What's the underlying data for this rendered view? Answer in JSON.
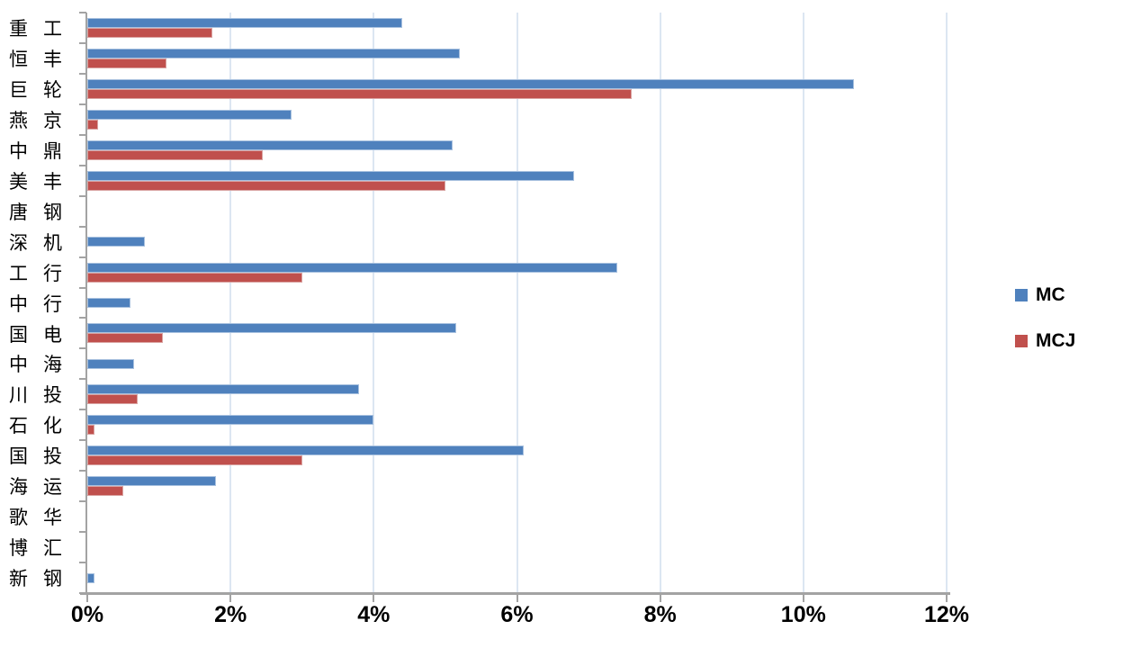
{
  "chart_data": {
    "type": "bar",
    "orientation": "horizontal",
    "title": "",
    "xlabel": "",
    "ylabel": "",
    "grid": true,
    "gridline_color": "#DCE6F2",
    "axis_color": "#A3A3A3",
    "legend_position": "right",
    "categories": [
      "重工",
      "恒丰",
      "巨轮",
      "燕京",
      "中鼎",
      "美丰",
      "唐钢",
      "深机",
      "工行",
      "中行",
      "国电",
      "中海",
      "川投",
      "石化",
      "国投",
      "海运",
      "歌华",
      "博汇",
      "新钢"
    ],
    "series": [
      {
        "name": "MC",
        "color": "#4F81BD",
        "values": [
          4.4,
          5.2,
          10.7,
          2.85,
          5.1,
          6.8,
          0,
          0.8,
          7.4,
          0.6,
          5.15,
          0.65,
          3.8,
          4.0,
          6.1,
          1.8,
          0,
          0,
          0.1
        ]
      },
      {
        "name": "MCJ",
        "color": "#C0504D",
        "values": [
          1.75,
          1.1,
          7.6,
          0.15,
          2.45,
          5.0,
          0,
          0,
          3.0,
          0,
          1.05,
          0,
          0.7,
          0.1,
          3.0,
          0.5,
          0,
          0,
          0
        ]
      }
    ],
    "x_axis": {
      "min": 0,
      "max": 12,
      "tick_step": 2,
      "ticks": [
        "0%",
        "2%",
        "4%",
        "6%",
        "8%",
        "10%",
        "12%"
      ]
    }
  }
}
